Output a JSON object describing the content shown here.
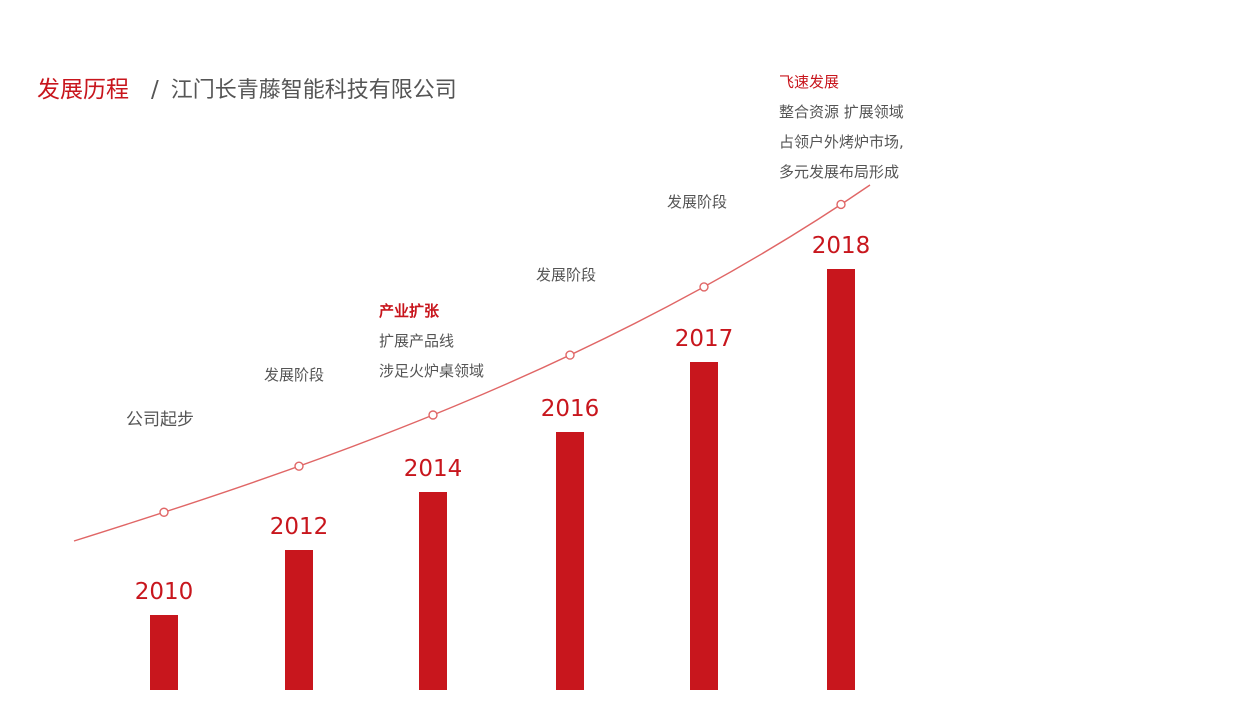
{
  "header": {
    "title": "发展历程",
    "separator": "/",
    "subtitle": "江门长青藤智能科技有限公司"
  },
  "colors": {
    "accent": "#c8161d",
    "curve": "#e06666",
    "text": "#555555"
  },
  "annotations": {
    "start": "公司起步",
    "stage_2012": "发展阶段",
    "expansion": {
      "heading": "产业扩张",
      "lines": [
        "扩展产品线",
        "涉足火炉桌领域"
      ]
    },
    "stage_2016": "发展阶段",
    "stage_2017": "发展阶段",
    "rapid": {
      "heading": "飞速发展",
      "lines": [
        "整合资源 扩展领域",
        "占领户外烤炉市场,",
        "多元发展布局形成"
      ]
    }
  },
  "chart_data": {
    "type": "bar",
    "categories": [
      "2010",
      "2012",
      "2014",
      "2016",
      "2017",
      "2018"
    ],
    "values": [
      75,
      140,
      198,
      258,
      328,
      421
    ],
    "ylim": [
      0,
      440
    ],
    "trend_line": true,
    "grid": false,
    "legend": "none"
  }
}
